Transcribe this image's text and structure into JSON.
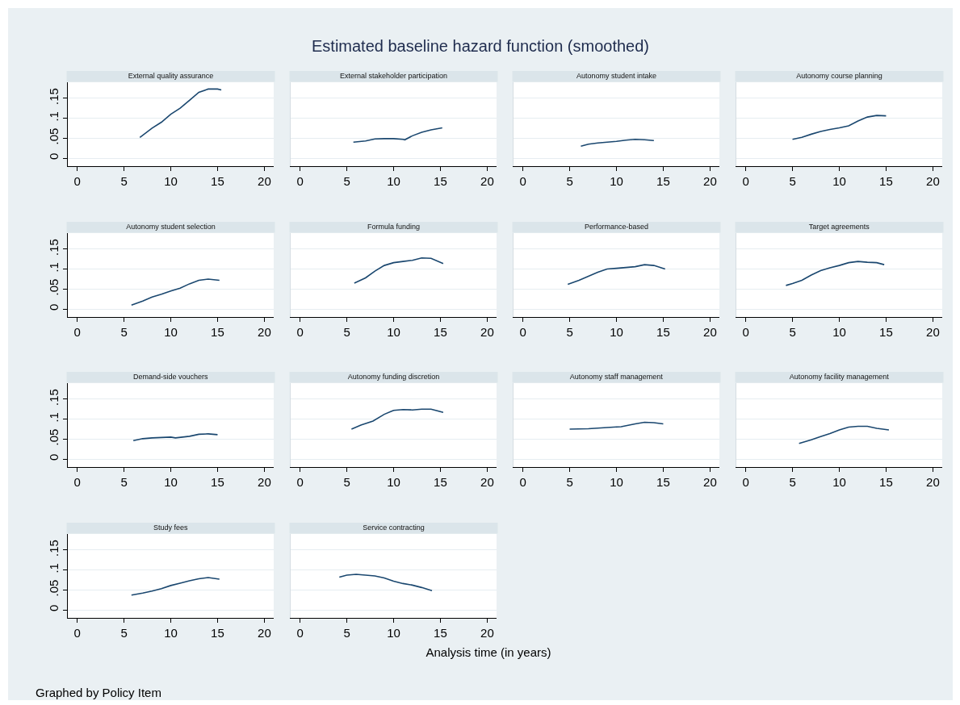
{
  "chart_data": [
    {
      "type": "other",
      "title": "Estimated baseline hazard function (smoothed)",
      "xlabel": "Analysis time (in years)",
      "annotations": [
        "Graphed by Policy Item"
      ]
    },
    {
      "type": "line",
      "title": "External quality assurance",
      "x": [
        6.7,
        8,
        9,
        10,
        11,
        12,
        13,
        14,
        15,
        15.4
      ],
      "values": [
        0.052,
        0.075,
        0.09,
        0.11,
        0.125,
        0.145,
        0.165,
        0.173,
        0.173,
        0.171
      ],
      "color": "#1a476f",
      "xlim": [
        -1,
        21
      ],
      "xticks": [
        0,
        5,
        10,
        15,
        20
      ],
      "ylim": [
        -0.02,
        0.19
      ],
      "yticks": [
        0,
        {
          "value": 0.05,
          "label": ".05"
        },
        {
          "value": 0.1,
          "label": ".1"
        },
        {
          "value": 0.15,
          "label": ".15"
        }
      ],
      "grid": "y"
    },
    {
      "type": "line",
      "title": "External stakeholder participation",
      "x": [
        5.7,
        7,
        8,
        9,
        10,
        11,
        11.2,
        12,
        13,
        14,
        15.2
      ],
      "values": [
        0.04,
        0.043,
        0.048,
        0.049,
        0.049,
        0.047,
        0.046,
        0.056,
        0.065,
        0.071,
        0.076
      ],
      "color": "#1a476f",
      "xlim": [
        -1,
        21
      ],
      "xticks": [
        0,
        5,
        10,
        15,
        20
      ],
      "ylim": [
        -0.02,
        0.19
      ],
      "yticks": [
        0,
        0.05,
        0.1,
        0.15
      ],
      "grid": "y",
      "tick_labels": "x"
    },
    {
      "type": "line",
      "title": "Autonomy student intake",
      "x": [
        6.2,
        7,
        8,
        9,
        10,
        11,
        12,
        13,
        14
      ],
      "values": [
        0.03,
        0.035,
        0.038,
        0.04,
        0.042,
        0.045,
        0.047,
        0.046,
        0.044
      ],
      "color": "#1a476f",
      "xlim": [
        -1,
        21
      ],
      "xticks": [
        0,
        5,
        10,
        15,
        20
      ],
      "ylim": [
        -0.02,
        0.19
      ],
      "yticks": [
        0,
        0.05,
        0.1,
        0.15
      ],
      "grid": "y",
      "tick_labels": "x"
    },
    {
      "type": "line",
      "title": "Autonomy course planning",
      "x": [
        5,
        6,
        7,
        8,
        9,
        10,
        11,
        12,
        13,
        14,
        15
      ],
      "values": [
        0.047,
        0.052,
        0.06,
        0.067,
        0.072,
        0.076,
        0.081,
        0.093,
        0.103,
        0.107,
        0.106
      ],
      "color": "#1a476f",
      "xlim": [
        -1,
        21
      ],
      "xticks": [
        0,
        5,
        10,
        15,
        20
      ],
      "ylim": [
        -0.02,
        0.19
      ],
      "yticks": [
        0,
        0.05,
        0.1,
        0.15
      ],
      "grid": "y",
      "tick_labels": "x"
    },
    {
      "type": "line",
      "title": "Autonomy student selection",
      "x": [
        5.8,
        7,
        8,
        9,
        10,
        11,
        12,
        13,
        14,
        15.2
      ],
      "values": [
        0.01,
        0.02,
        0.03,
        0.037,
        0.045,
        0.052,
        0.063,
        0.072,
        0.075,
        0.072
      ],
      "color": "#1a476f",
      "xlim": [
        -1,
        21
      ],
      "xticks": [
        0,
        5,
        10,
        15,
        20
      ],
      "ylim": [
        -0.02,
        0.19
      ],
      "yticks": [
        0,
        {
          "value": 0.05,
          "label": ".05"
        },
        {
          "value": 0.1,
          "label": ".1"
        },
        {
          "value": 0.15,
          "label": ".15"
        }
      ],
      "grid": "y"
    },
    {
      "type": "line",
      "title": "Formula funding",
      "x": [
        5.8,
        7,
        8,
        9,
        10,
        11,
        12,
        13,
        14,
        15.3
      ],
      "values": [
        0.065,
        0.078,
        0.095,
        0.109,
        0.116,
        0.119,
        0.122,
        0.128,
        0.127,
        0.114
      ],
      "color": "#1a476f",
      "xlim": [
        -1,
        21
      ],
      "xticks": [
        0,
        5,
        10,
        15,
        20
      ],
      "ylim": [
        -0.02,
        0.19
      ],
      "yticks": [
        0,
        0.05,
        0.1,
        0.15
      ],
      "grid": "y",
      "tick_labels": "x"
    },
    {
      "type": "line",
      "title": "Performance-based",
      "x": [
        4.8,
        6,
        7,
        8,
        9,
        10,
        11,
        12,
        13,
        14,
        15.2
      ],
      "values": [
        0.062,
        0.072,
        0.082,
        0.092,
        0.1,
        0.102,
        0.104,
        0.106,
        0.111,
        0.109,
        0.1
      ],
      "color": "#1a476f",
      "xlim": [
        -1,
        21
      ],
      "xticks": [
        0,
        5,
        10,
        15,
        20
      ],
      "ylim": [
        -0.02,
        0.19
      ],
      "yticks": [
        0,
        0.05,
        0.1,
        0.15
      ],
      "grid": "y",
      "tick_labels": "x"
    },
    {
      "type": "line",
      "title": "Target agreements",
      "x": [
        4.3,
        5,
        6,
        7,
        8,
        9,
        10,
        11,
        12,
        13,
        14,
        14.8
      ],
      "values": [
        0.059,
        0.064,
        0.072,
        0.085,
        0.096,
        0.103,
        0.109,
        0.116,
        0.119,
        0.117,
        0.116,
        0.111
      ],
      "color": "#1a476f",
      "xlim": [
        -1,
        21
      ],
      "xticks": [
        0,
        5,
        10,
        15,
        20
      ],
      "ylim": [
        -0.02,
        0.19
      ],
      "yticks": [
        0,
        0.05,
        0.1,
        0.15
      ],
      "grid": "y",
      "tick_labels": "x"
    },
    {
      "type": "line",
      "title": "Demand-side vouchers",
      "x": [
        6,
        7,
        8,
        9,
        10,
        10.5,
        12,
        13,
        14,
        15
      ],
      "values": [
        0.046,
        0.051,
        0.053,
        0.054,
        0.055,
        0.053,
        0.057,
        0.062,
        0.063,
        0.061
      ],
      "color": "#1a476f",
      "xlim": [
        -1,
        21
      ],
      "xticks": [
        0,
        5,
        10,
        15,
        20
      ],
      "ylim": [
        -0.02,
        0.19
      ],
      "yticks": [
        0,
        {
          "value": 0.05,
          "label": ".05"
        },
        {
          "value": 0.1,
          "label": ".1"
        },
        {
          "value": 0.15,
          "label": ".15"
        }
      ],
      "grid": "y"
    },
    {
      "type": "line",
      "title": "Autonomy funding discretion",
      "x": [
        5.5,
        6.5,
        7.8,
        9,
        10,
        11,
        12,
        13,
        14,
        15.3
      ],
      "values": [
        0.075,
        0.085,
        0.095,
        0.112,
        0.122,
        0.124,
        0.123,
        0.125,
        0.125,
        0.117
      ],
      "color": "#1a476f",
      "xlim": [
        -1,
        21
      ],
      "xticks": [
        0,
        5,
        10,
        15,
        20
      ],
      "ylim": [
        -0.02,
        0.19
      ],
      "yticks": [
        0,
        0.05,
        0.1,
        0.15
      ],
      "grid": "y",
      "tick_labels": "x"
    },
    {
      "type": "line",
      "title": "Autonomy staff management",
      "x": [
        5,
        7,
        9,
        10.5,
        12,
        13,
        14,
        15
      ],
      "values": [
        0.075,
        0.076,
        0.079,
        0.081,
        0.088,
        0.092,
        0.091,
        0.088
      ],
      "color": "#1a476f",
      "xlim": [
        -1,
        21
      ],
      "xticks": [
        0,
        5,
        10,
        15,
        20
      ],
      "ylim": [
        -0.02,
        0.19
      ],
      "yticks": [
        0,
        0.05,
        0.1,
        0.15
      ],
      "grid": "y",
      "tick_labels": "x"
    },
    {
      "type": "line",
      "title": "Autonomy facility management",
      "x": [
        5.7,
        7,
        8,
        9,
        10,
        11,
        12,
        13,
        14,
        15.3
      ],
      "values": [
        0.039,
        0.048,
        0.056,
        0.064,
        0.073,
        0.08,
        0.082,
        0.082,
        0.077,
        0.073
      ],
      "color": "#1a476f",
      "xlim": [
        -1,
        21
      ],
      "xticks": [
        0,
        5,
        10,
        15,
        20
      ],
      "ylim": [
        -0.02,
        0.19
      ],
      "yticks": [
        0,
        0.05,
        0.1,
        0.15
      ],
      "grid": "y",
      "tick_labels": "x"
    },
    {
      "type": "line",
      "title": "Study fees",
      "x": [
        5.8,
        7,
        8,
        9,
        10,
        11,
        12,
        13,
        14,
        15.2
      ],
      "values": [
        0.037,
        0.042,
        0.047,
        0.053,
        0.061,
        0.067,
        0.073,
        0.078,
        0.081,
        0.077
      ],
      "color": "#1a476f",
      "xlim": [
        -1,
        21
      ],
      "xticks": [
        0,
        5,
        10,
        15,
        20
      ],
      "ylim": [
        -0.02,
        0.19
      ],
      "yticks": [
        0,
        {
          "value": 0.05,
          "label": ".05"
        },
        {
          "value": 0.1,
          "label": ".1"
        },
        {
          "value": 0.15,
          "label": ".15"
        }
      ],
      "grid": "y"
    },
    {
      "type": "line",
      "title": "Service contracting",
      "x": [
        4.2,
        5,
        6,
        7,
        8,
        9,
        10,
        11,
        12,
        13,
        14.1
      ],
      "values": [
        0.082,
        0.087,
        0.089,
        0.087,
        0.085,
        0.08,
        0.072,
        0.066,
        0.062,
        0.056,
        0.048
      ],
      "color": "#1a476f",
      "xlim": [
        -1,
        21
      ],
      "xticks": [
        0,
        5,
        10,
        15,
        20
      ],
      "ylim": [
        -0.02,
        0.19
      ],
      "yticks": [
        0,
        0.05,
        0.1,
        0.15
      ],
      "grid": "y",
      "tick_labels": "x"
    }
  ]
}
